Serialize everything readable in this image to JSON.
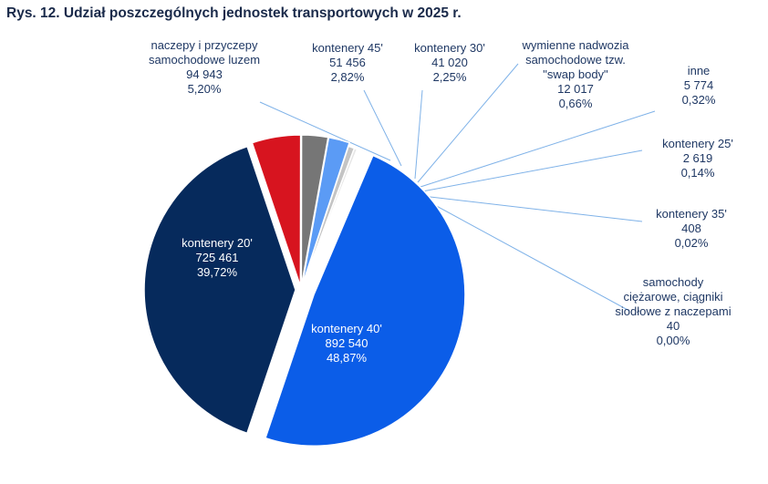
{
  "title": "Rys. 12. Udział poszczególnych jednostek transportowych w 2025 r.",
  "chart_data": {
    "type": "pie",
    "slices": [
      {
        "lines": [
          "kontenery 40'"
        ],
        "value_text": "892 540",
        "pct_text": "48,87%",
        "value": 892540,
        "pct": 48.87,
        "color": "#0b5de8"
      },
      {
        "lines": [
          "kontenery 20'"
        ],
        "value_text": "725 461",
        "pct_text": "39,72%",
        "value": 725461,
        "pct": 39.72,
        "color": "#062a5c"
      },
      {
        "lines": [
          "naczepy i przyczepy",
          "samochodowe luzem"
        ],
        "value_text": "94 943",
        "pct_text": "5,20%",
        "value": 94943,
        "pct": 5.2,
        "color": "#d7141f"
      },
      {
        "lines": [
          "kontenery 45'"
        ],
        "value_text": "51 456",
        "pct_text": "2,82%",
        "value": 51456,
        "pct": 2.82,
        "color": "#767676"
      },
      {
        "lines": [
          "kontenery 30'"
        ],
        "value_text": "41 020",
        "pct_text": "2,25%",
        "value": 41020,
        "pct": 2.25,
        "color": "#5b9bf5"
      },
      {
        "lines": [
          "wymienne nadwozia",
          "samochodowe tzw.",
          "\"swap body\""
        ],
        "value_text": "12 017",
        "pct_text": "0,66%",
        "value": 12017,
        "pct": 0.66,
        "color": "#c4c4c4"
      },
      {
        "lines": [
          "inne"
        ],
        "value_text": "5 774",
        "pct_text": "0,32%",
        "value": 5774,
        "pct": 0.32,
        "color": "#e6e6e6"
      },
      {
        "lines": [
          "kontenery 25'"
        ],
        "value_text": "2 619",
        "pct_text": "0,14%",
        "value": 2619,
        "pct": 0.14,
        "color": "#9aa8bb"
      },
      {
        "lines": [
          "kontenery 35'"
        ],
        "value_text": "408",
        "pct_text": "0,02%",
        "value": 408,
        "pct": 0.02,
        "color": "#2e3f5c"
      },
      {
        "lines": [
          "samochody",
          "ciężarowe, ciągniki",
          "siodłowe z naczepami"
        ],
        "value_text": "40",
        "pct_text": "0,00%",
        "value": 40,
        "pct": 0.0,
        "color": "#111111"
      }
    ]
  }
}
